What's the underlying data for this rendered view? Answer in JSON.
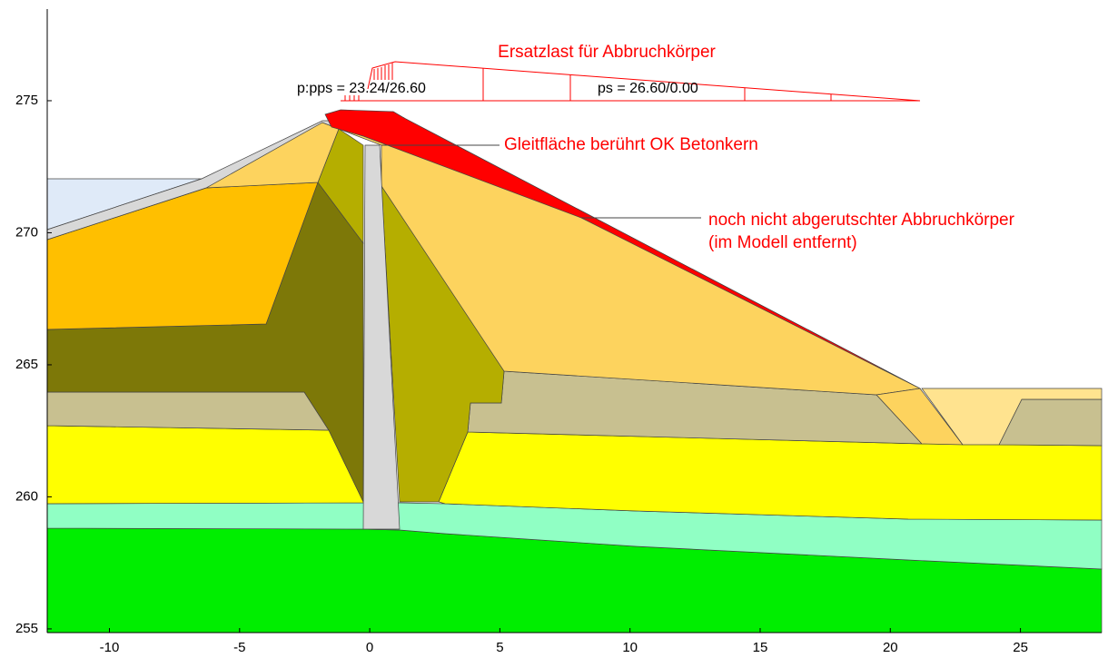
{
  "chart_data": {
    "type": "section",
    "xlim": [
      -12.39,
      28.12
    ],
    "ylim": [
      254.86,
      278.47
    ],
    "xticks": [
      -10,
      -5,
      0,
      5,
      10,
      15,
      20,
      25
    ],
    "yticks": [
      255,
      260,
      265,
      270,
      275
    ],
    "annotations": [
      "Ersatzlast für Abbruchkörper",
      "p:pps = 23.24/26.60",
      "ps = 26.60/0.00",
      "Gleitfläche berührt OK Betonkern",
      "noch nicht abgerutschter Abbruchkörper",
      "(im Modell entfernt)"
    ]
  }
}
